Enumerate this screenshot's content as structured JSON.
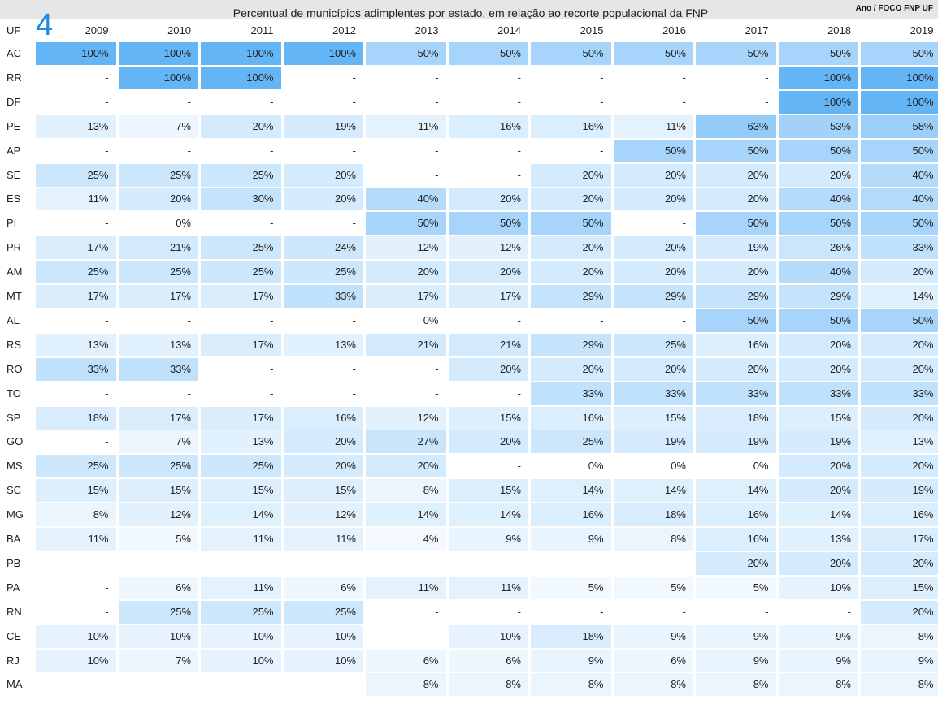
{
  "header": {
    "title": "Percentual de municípios adimplentes por estado, em relação ao recorte populacional da FNP",
    "corner_label": "Ano / FOCO FNP UF",
    "badge": "4"
  },
  "chart_data": {
    "type": "table",
    "title": "Percentual de municípios adimplentes por estado, em relação ao recorte populacional da FNP",
    "row_header": "UF",
    "columns": [
      "2009",
      "2010",
      "2011",
      "2012",
      "2013",
      "2014",
      "2015",
      "2016",
      "2017",
      "2018",
      "2019"
    ],
    "colors": {
      "low": "#ffffff",
      "high": "#64b5f6"
    },
    "rows": [
      {
        "uf": "AC",
        "values": [
          "100%",
          "100%",
          "100%",
          "100%",
          "50%",
          "50%",
          "50%",
          "50%",
          "50%",
          "50%",
          "50%"
        ]
      },
      {
        "uf": "RR",
        "values": [
          "-",
          "100%",
          "100%",
          "-",
          "-",
          "-",
          "-",
          "-",
          "-",
          "100%",
          "100%"
        ]
      },
      {
        "uf": "DF",
        "values": [
          "-",
          "-",
          "-",
          "-",
          "-",
          "-",
          "-",
          "-",
          "-",
          "100%",
          "100%"
        ]
      },
      {
        "uf": "PE",
        "values": [
          "13%",
          "7%",
          "20%",
          "19%",
          "11%",
          "16%",
          "16%",
          "11%",
          "63%",
          "53%",
          "58%"
        ]
      },
      {
        "uf": "AP",
        "values": [
          "-",
          "-",
          "-",
          "-",
          "-",
          "-",
          "-",
          "50%",
          "50%",
          "50%",
          "50%"
        ]
      },
      {
        "uf": "SE",
        "values": [
          "25%",
          "25%",
          "25%",
          "20%",
          "-",
          "-",
          "20%",
          "20%",
          "20%",
          "20%",
          "40%"
        ]
      },
      {
        "uf": "ES",
        "values": [
          "11%",
          "20%",
          "30%",
          "20%",
          "40%",
          "20%",
          "20%",
          "20%",
          "20%",
          "40%",
          "40%"
        ]
      },
      {
        "uf": "PI",
        "values": [
          "-",
          "0%",
          "-",
          "-",
          "50%",
          "50%",
          "50%",
          "-",
          "50%",
          "50%",
          "50%"
        ]
      },
      {
        "uf": "PR",
        "values": [
          "17%",
          "21%",
          "25%",
          "24%",
          "12%",
          "12%",
          "20%",
          "20%",
          "19%",
          "26%",
          "33%"
        ]
      },
      {
        "uf": "AM",
        "values": [
          "25%",
          "25%",
          "25%",
          "25%",
          "20%",
          "20%",
          "20%",
          "20%",
          "20%",
          "40%",
          "20%"
        ]
      },
      {
        "uf": "MT",
        "values": [
          "17%",
          "17%",
          "17%",
          "33%",
          "17%",
          "17%",
          "29%",
          "29%",
          "29%",
          "29%",
          "14%"
        ]
      },
      {
        "uf": "AL",
        "values": [
          "-",
          "-",
          "-",
          "-",
          "0%",
          "-",
          "-",
          "-",
          "50%",
          "50%",
          "50%"
        ]
      },
      {
        "uf": "RS",
        "values": [
          "13%",
          "13%",
          "17%",
          "13%",
          "21%",
          "21%",
          "29%",
          "25%",
          "16%",
          "20%",
          "20%"
        ]
      },
      {
        "uf": "RO",
        "values": [
          "33%",
          "33%",
          "-",
          "-",
          "-",
          "20%",
          "20%",
          "20%",
          "20%",
          "20%",
          "20%"
        ]
      },
      {
        "uf": "TO",
        "values": [
          "-",
          "-",
          "-",
          "-",
          "-",
          "-",
          "33%",
          "33%",
          "33%",
          "33%",
          "33%"
        ]
      },
      {
        "uf": "SP",
        "values": [
          "18%",
          "17%",
          "17%",
          "16%",
          "12%",
          "15%",
          "16%",
          "15%",
          "18%",
          "15%",
          "20%"
        ]
      },
      {
        "uf": "GO",
        "values": [
          "-",
          "7%",
          "13%",
          "20%",
          "27%",
          "20%",
          "25%",
          "19%",
          "19%",
          "19%",
          "13%"
        ]
      },
      {
        "uf": "MS",
        "values": [
          "25%",
          "25%",
          "25%",
          "20%",
          "20%",
          "-",
          "0%",
          "0%",
          "0%",
          "20%",
          "20%"
        ]
      },
      {
        "uf": "SC",
        "values": [
          "15%",
          "15%",
          "15%",
          "15%",
          "8%",
          "15%",
          "14%",
          "14%",
          "14%",
          "20%",
          "19%"
        ]
      },
      {
        "uf": "MG",
        "values": [
          "8%",
          "12%",
          "14%",
          "12%",
          "14%",
          "14%",
          "16%",
          "18%",
          "16%",
          "14%",
          "16%"
        ]
      },
      {
        "uf": "BA",
        "values": [
          "11%",
          "5%",
          "11%",
          "11%",
          "4%",
          "9%",
          "9%",
          "8%",
          "16%",
          "13%",
          "17%"
        ]
      },
      {
        "uf": "PB",
        "values": [
          "-",
          "-",
          "-",
          "-",
          "-",
          "-",
          "-",
          "-",
          "20%",
          "20%",
          "20%"
        ]
      },
      {
        "uf": "PA",
        "values": [
          "-",
          "6%",
          "11%",
          "6%",
          "11%",
          "11%",
          "5%",
          "5%",
          "5%",
          "10%",
          "15%"
        ]
      },
      {
        "uf": "RN",
        "values": [
          "-",
          "25%",
          "25%",
          "25%",
          "-",
          "-",
          "-",
          "-",
          "-",
          "-",
          "20%"
        ]
      },
      {
        "uf": "CE",
        "values": [
          "10%",
          "10%",
          "10%",
          "10%",
          "-",
          "10%",
          "18%",
          "9%",
          "9%",
          "9%",
          "8%"
        ]
      },
      {
        "uf": "RJ",
        "values": [
          "10%",
          "7%",
          "10%",
          "10%",
          "6%",
          "6%",
          "9%",
          "6%",
          "9%",
          "9%",
          "9%"
        ]
      },
      {
        "uf": "MA",
        "values": [
          "-",
          "-",
          "-",
          "-",
          "8%",
          "8%",
          "8%",
          "8%",
          "8%",
          "8%",
          "8%"
        ]
      }
    ]
  }
}
